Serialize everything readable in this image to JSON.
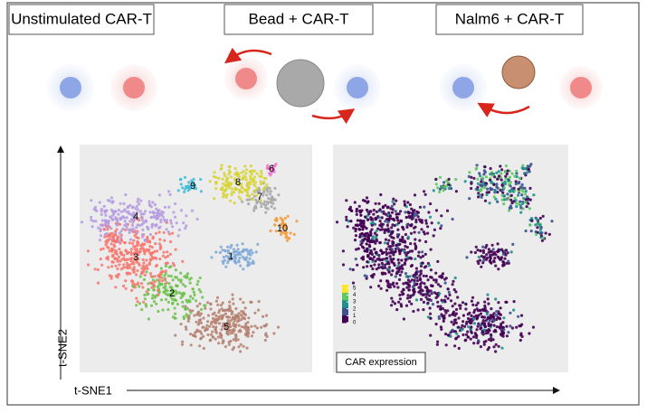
{
  "conditions": [
    "Unstimulated CAR-T",
    "Bead + CAR-T",
    "Nalm6 + CAR-T"
  ],
  "axes": {
    "y": "t-SNE2",
    "x": "t-SNE1"
  },
  "clusters": [
    "1",
    "2",
    "3",
    "4",
    "5",
    "6",
    "7",
    "8",
    "9",
    "10"
  ],
  "colorbar": {
    "ticks": [
      0,
      1,
      2,
      3,
      4,
      5
    ],
    "range": [
      0,
      5.5
    ]
  },
  "legend": "CAR expression"
}
